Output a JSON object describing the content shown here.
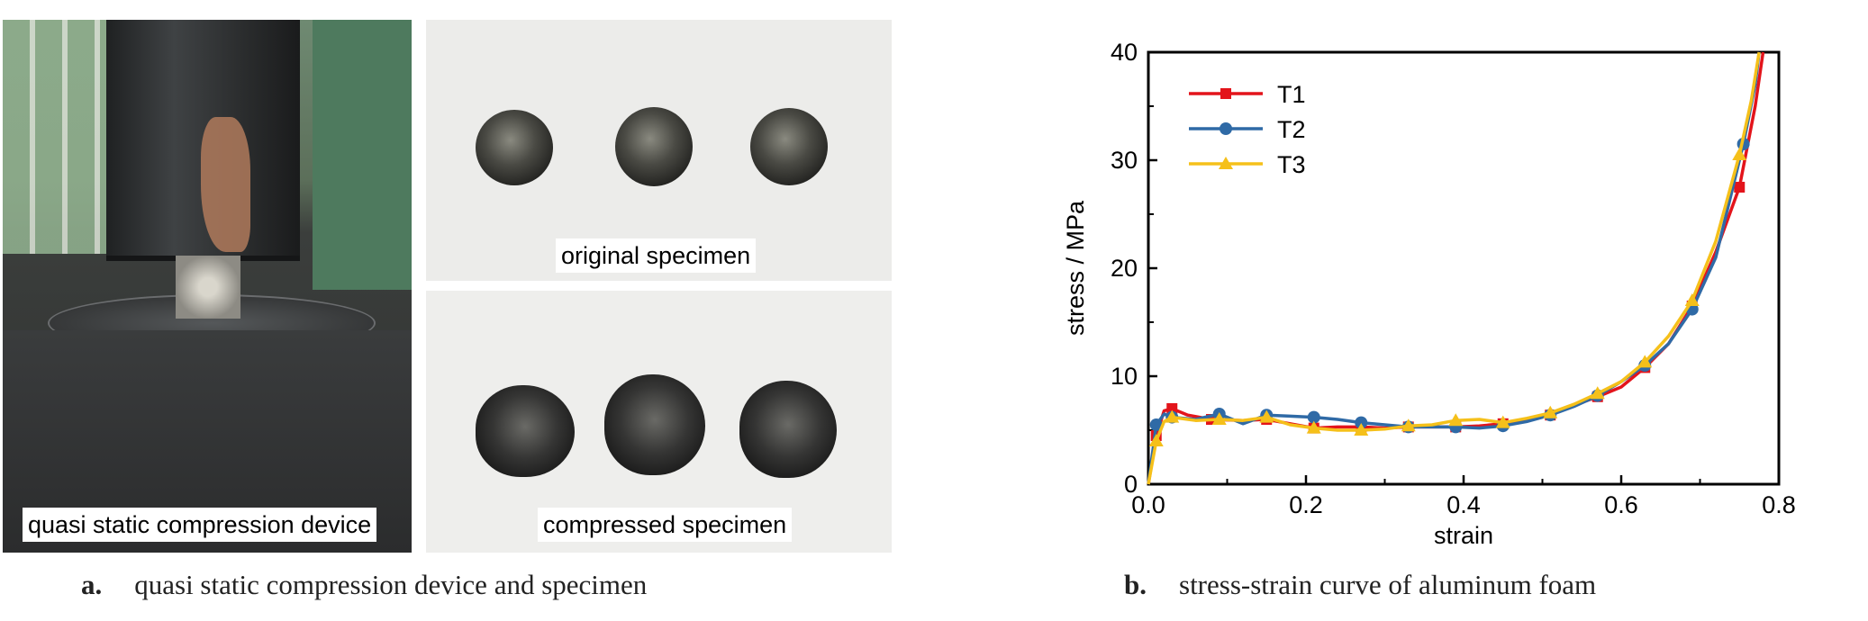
{
  "panel_a": {
    "device_label": "quasi static compression device",
    "original_label": "original specimen",
    "compressed_label": "compressed specimen",
    "caption_letter": "a.",
    "caption_text": "quasi static compression device and specimen"
  },
  "panel_b": {
    "caption_letter": "b.",
    "caption_text": "stress-strain curve of aluminum foam"
  },
  "chart_data": {
    "type": "line",
    "xlabel": "strain",
    "ylabel": "stress / MPa",
    "xlim": [
      0,
      0.8
    ],
    "ylim": [
      0,
      40
    ],
    "x_ticks": [
      "0.0",
      "0.2",
      "0.4",
      "0.6",
      "0.8"
    ],
    "y_ticks": [
      "0",
      "10",
      "20",
      "30",
      "40"
    ],
    "legend_position": "top-left",
    "series": [
      {
        "name": "T1",
        "color": "#e3141b",
        "marker": "square",
        "x": [
          0.0,
          0.01,
          0.02,
          0.03,
          0.05,
          0.08,
          0.12,
          0.15,
          0.18,
          0.21,
          0.24,
          0.27,
          0.3,
          0.33,
          0.36,
          0.39,
          0.42,
          0.45,
          0.48,
          0.51,
          0.54,
          0.57,
          0.6,
          0.63,
          0.66,
          0.69,
          0.72,
          0.75,
          0.77,
          0.78
        ],
        "y": [
          0,
          4.5,
          6.8,
          7.0,
          6.4,
          6.0,
          5.9,
          6.0,
          5.6,
          5.2,
          5.3,
          5.3,
          5.2,
          5.3,
          5.3,
          5.3,
          5.4,
          5.6,
          5.9,
          6.4,
          7.3,
          8.1,
          9.0,
          10.8,
          13.0,
          16.5,
          21.5,
          27.5,
          35.0,
          40.0
        ]
      },
      {
        "name": "T2",
        "color": "#2f6aa6",
        "marker": "circle",
        "x": [
          0.0,
          0.01,
          0.02,
          0.03,
          0.06,
          0.09,
          0.12,
          0.15,
          0.18,
          0.21,
          0.24,
          0.27,
          0.3,
          0.33,
          0.36,
          0.39,
          0.42,
          0.45,
          0.48,
          0.51,
          0.54,
          0.57,
          0.6,
          0.63,
          0.66,
          0.69,
          0.72,
          0.755,
          0.77,
          0.775
        ],
        "y": [
          0,
          5.5,
          6.5,
          6.2,
          6.0,
          6.5,
          5.6,
          6.4,
          6.3,
          6.2,
          6.0,
          5.7,
          5.5,
          5.3,
          5.3,
          5.3,
          5.2,
          5.4,
          5.8,
          6.4,
          7.2,
          8.2,
          9.5,
          11.0,
          13.0,
          16.2,
          21.0,
          31.5,
          37.0,
          40.0
        ]
      },
      {
        "name": "T3",
        "color": "#f5c01a",
        "marker": "triangle",
        "x": [
          0.0,
          0.01,
          0.02,
          0.03,
          0.06,
          0.09,
          0.12,
          0.15,
          0.18,
          0.21,
          0.24,
          0.27,
          0.3,
          0.33,
          0.36,
          0.39,
          0.42,
          0.45,
          0.48,
          0.51,
          0.54,
          0.57,
          0.6,
          0.63,
          0.66,
          0.69,
          0.72,
          0.75,
          0.765,
          0.775
        ],
        "y": [
          0,
          4.0,
          5.8,
          6.2,
          5.9,
          6.0,
          5.9,
          6.2,
          5.5,
          5.2,
          5.0,
          5.0,
          5.1,
          5.4,
          5.5,
          5.9,
          6.0,
          5.7,
          6.1,
          6.6,
          7.4,
          8.4,
          9.5,
          11.3,
          13.7,
          17.0,
          22.5,
          30.5,
          35.5,
          40.0
        ]
      }
    ]
  }
}
